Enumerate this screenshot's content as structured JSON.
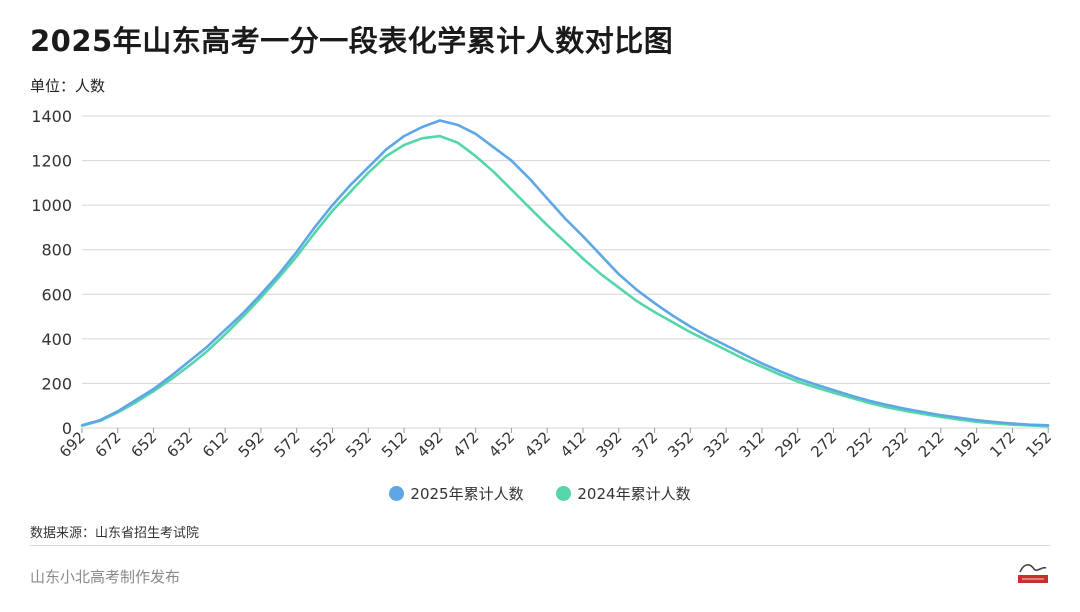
{
  "title": "2025年山东高考一分一段表化学累计人数对比图",
  "unit_label": "单位：人数",
  "source": "数据来源：山东省招生考试院",
  "footer": "山东小北高考制作发布",
  "logo_text": "山东小北高考",
  "colors": {
    "s2025": "#5ea7e6",
    "s2024": "#56d6a8",
    "grid": "#d6d6d6",
    "axis_text": "#333333"
  },
  "chart_data": {
    "type": "line",
    "title": "2025年山东高考一分一段表化学累计人数对比图",
    "ylabel": "单位：人数",
    "xlabel": "",
    "x_range": [
      692,
      151
    ],
    "ylim": [
      0,
      1400
    ],
    "y_ticks": [
      0,
      200,
      400,
      600,
      800,
      1000,
      1200,
      1400
    ],
    "x_ticks": [
      692,
      672,
      652,
      632,
      612,
      592,
      572,
      552,
      532,
      512,
      492,
      472,
      452,
      432,
      412,
      392,
      372,
      352,
      332,
      312,
      292,
      272,
      252,
      232,
      212,
      192,
      172,
      152
    ],
    "grid": "horizontal",
    "legend": "bottom",
    "series": [
      {
        "name": "2025年累计人数",
        "color": "#5ea7e6",
        "x": [
          692,
          682,
          672,
          662,
          652,
          642,
          632,
          622,
          612,
          602,
          592,
          582,
          572,
          562,
          552,
          542,
          532,
          522,
          512,
          502,
          492,
          482,
          472,
          462,
          452,
          442,
          432,
          422,
          412,
          402,
          392,
          382,
          372,
          362,
          352,
          342,
          332,
          322,
          312,
          302,
          292,
          282,
          272,
          262,
          252,
          242,
          232,
          222,
          212,
          202,
          192,
          182,
          172,
          162,
          152
        ],
        "values": [
          12,
          35,
          75,
          125,
          175,
          235,
          300,
          365,
          440,
          515,
          600,
          690,
          790,
          900,
          1000,
          1090,
          1170,
          1250,
          1310,
          1350,
          1380,
          1360,
          1320,
          1260,
          1200,
          1120,
          1030,
          940,
          860,
          775,
          690,
          620,
          560,
          505,
          455,
          410,
          370,
          330,
          290,
          255,
          222,
          195,
          170,
          145,
          122,
          103,
          86,
          72,
          58,
          46,
          35,
          27,
          20,
          15,
          12
        ]
      },
      {
        "name": "2024年累计人数",
        "color": "#56d6a8",
        "x": [
          692,
          682,
          672,
          662,
          652,
          642,
          632,
          622,
          612,
          602,
          592,
          582,
          572,
          562,
          552,
          542,
          532,
          522,
          512,
          502,
          492,
          482,
          472,
          462,
          452,
          442,
          432,
          422,
          412,
          402,
          392,
          382,
          372,
          362,
          352,
          342,
          332,
          322,
          312,
          302,
          292,
          282,
          272,
          262,
          252,
          242,
          232,
          222,
          212,
          202,
          192,
          182,
          172,
          162,
          152
        ],
        "values": [
          10,
          32,
          70,
          115,
          165,
          220,
          280,
          345,
          420,
          500,
          585,
          675,
          770,
          875,
          975,
          1060,
          1145,
          1220,
          1270,
          1300,
          1310,
          1280,
          1220,
          1150,
          1070,
          990,
          910,
          835,
          760,
          690,
          630,
          570,
          520,
          475,
          430,
          390,
          350,
          310,
          275,
          240,
          208,
          182,
          158,
          135,
          112,
          93,
          77,
          63,
          50,
          38,
          28,
          21,
          15,
          11,
          8
        ]
      }
    ]
  }
}
